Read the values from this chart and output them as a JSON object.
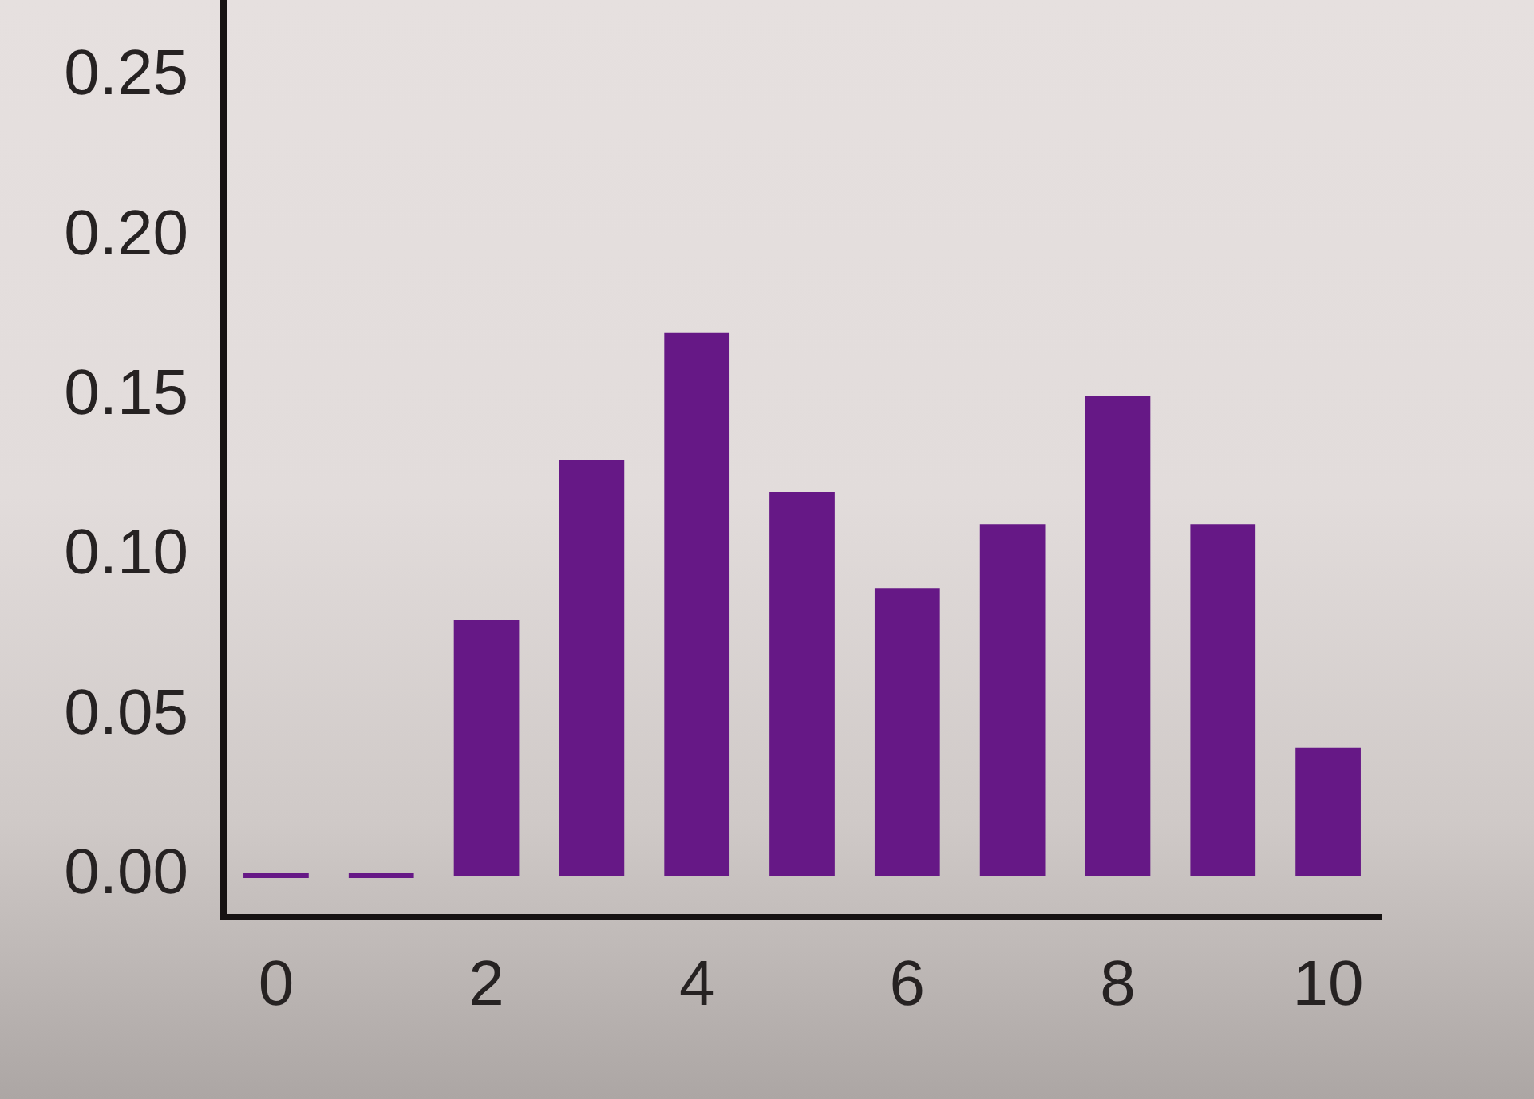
{
  "chart_data": {
    "type": "bar",
    "categories": [
      "0",
      null,
      "2",
      null,
      "4",
      null,
      "6",
      null,
      "8",
      null,
      "10"
    ],
    "values": [
      0,
      0,
      0.08,
      0.13,
      0.17,
      0.12,
      0.09,
      0.11,
      0.15,
      0.11,
      0.04
    ],
    "color": "#661886",
    "ylim": [
      -0.013,
      0.274
    ],
    "yticks": [
      {
        "value": 0,
        "label": "0.00"
      },
      {
        "value": 0.05,
        "label": "0.05"
      },
      {
        "value": 0.1,
        "label": "0.10"
      },
      {
        "value": 0.15,
        "label": "0.15"
      },
      {
        "value": 0.2,
        "label": "0.20"
      },
      {
        "value": 0.25,
        "label": "0.25"
      }
    ],
    "grid": false,
    "legend": false
  }
}
